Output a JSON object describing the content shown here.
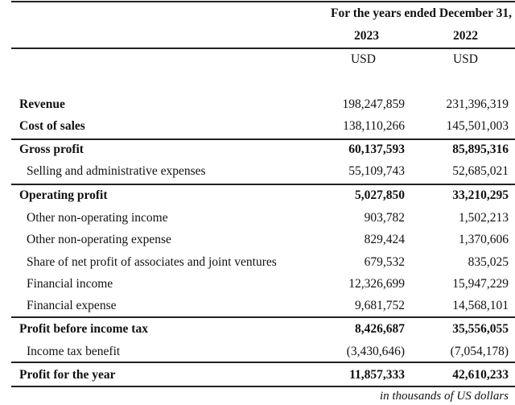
{
  "header": {
    "period": "For the years ended December 31,",
    "years": [
      "2023",
      "2022"
    ],
    "currency": [
      "USD",
      "USD"
    ]
  },
  "rows": [
    {
      "label": "Revenue",
      "v2023": "198,247,859",
      "v2022": "231,396,319",
      "bold_label": true
    },
    {
      "label": "Cost of sales",
      "v2023": "138,110,266",
      "v2022": "145,501,003",
      "bold_label": true
    },
    {
      "label": "Gross profit",
      "v2023": "60,137,593",
      "v2022": "85,895,316",
      "bold": true
    },
    {
      "label": "Selling and administrative expenses",
      "v2023": "55,109,743",
      "v2022": "52,685,021"
    },
    {
      "label": "Operating profit",
      "v2023": "5,027,850",
      "v2022": "33,210,295",
      "bold": true
    },
    {
      "label": "Other non-operating income",
      "v2023": "903,782",
      "v2022": "1,502,213"
    },
    {
      "label": "Other non-operating expense",
      "v2023": "829,424",
      "v2022": "1,370,606"
    },
    {
      "label": "Share of net profit of associates and joint ventures",
      "v2023": "679,532",
      "v2022": "835,025"
    },
    {
      "label": "Financial income",
      "v2023": "12,326,699",
      "v2022": "15,947,229"
    },
    {
      "label": "Financial expense",
      "v2023": "9,681,752",
      "v2022": "14,568,101"
    },
    {
      "label": "Profit before income tax",
      "v2023": "8,426,687",
      "v2022": "35,556,055",
      "bold": true
    },
    {
      "label": "Income tax benefit",
      "v2023": "(3,430,646)",
      "v2022": "(7,054,178)"
    },
    {
      "label": "Profit for the year",
      "v2023": "11,857,333",
      "v2022": "42,610,233",
      "bold": true
    }
  ],
  "footnote": "in thousands of US dollars"
}
